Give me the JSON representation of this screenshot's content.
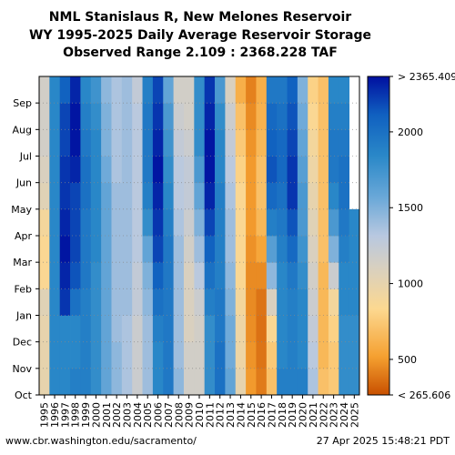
{
  "chart_data": {
    "type": "heatmap",
    "title": "NML Stanislaus R, New Melones Reservoir",
    "subtitle": "WY 1995-2025 Daily Average Reservoir Storage",
    "range_text": "Observed Range 2.109 : 2368.228 TAF",
    "x_years": [
      "1995",
      "1996",
      "1997",
      "1998",
      "1999",
      "2000",
      "2001",
      "2002",
      "2003",
      "2004",
      "2005",
      "2006",
      "2007",
      "2008",
      "2009",
      "2010",
      "2011",
      "2012",
      "2013",
      "2014",
      "2015",
      "2016",
      "2017",
      "2018",
      "2019",
      "2020",
      "2021",
      "2022",
      "2023",
      "2024",
      "2025"
    ],
    "y_months": [
      "Oct",
      "Nov",
      "Dec",
      "Jan",
      "Feb",
      "Mar",
      "Apr",
      "May",
      "Jun",
      "Jul",
      "Aug",
      "Sep"
    ],
    "colorbar_ticks": [
      {
        "label": "> 2365.409",
        "value": 2365.409
      },
      {
        "label": "2000",
        "value": 2000
      },
      {
        "label": "1500",
        "value": 1500
      },
      {
        "label": "1000",
        "value": 1000
      },
      {
        "label": "500",
        "value": 500
      },
      {
        "label": "< 265.606",
        "value": 265.606
      }
    ],
    "color_range": [
      265.606,
      2365.409
    ],
    "last_month_index": 6,
    "storage_taf_by_year": [
      [
        1000,
        1000,
        1000,
        1050,
        850,
        850,
        900,
        1050,
        1100,
        1150,
        1150,
        1150
      ],
      [
        1850,
        1850,
        1850,
        1850,
        1850,
        1850,
        1850,
        1850,
        1850,
        1850,
        1850,
        1850
      ],
      [
        1850,
        1850,
        1850,
        2250,
        2300,
        2350,
        2300,
        2250,
        2250,
        2200,
        2200,
        2100
      ],
      [
        1900,
        1850,
        1850,
        2000,
        2150,
        2200,
        2200,
        2200,
        2300,
        2350,
        2350,
        2300
      ],
      [
        1900,
        1900,
        1900,
        1900,
        1950,
        1950,
        1950,
        2000,
        2000,
        1950,
        1900,
        1850
      ],
      [
        1800,
        1800,
        1800,
        1800,
        1800,
        1850,
        1850,
        1850,
        1850,
        1850,
        1800,
        1750
      ],
      [
        1600,
        1600,
        1600,
        1600,
        1600,
        1600,
        1600,
        1600,
        1550,
        1500,
        1500,
        1450
      ],
      [
        1450,
        1450,
        1400,
        1400,
        1400,
        1400,
        1400,
        1400,
        1350,
        1350,
        1350,
        1350
      ],
      [
        1350,
        1350,
        1350,
        1400,
        1400,
        1400,
        1400,
        1400,
        1400,
        1400,
        1400,
        1400
      ],
      [
        1200,
        1200,
        1200,
        1250,
        1250,
        1300,
        1300,
        1300,
        1300,
        1300,
        1300,
        1250
      ],
      [
        1400,
        1400,
        1400,
        1450,
        1500,
        1600,
        1800,
        1900,
        1950,
        1950,
        1950,
        1900
      ],
      [
        1850,
        1850,
        1900,
        2000,
        2100,
        2200,
        2250,
        2300,
        2350,
        2300,
        2250,
        2200
      ],
      [
        1950,
        1950,
        1950,
        1950,
        1950,
        1950,
        1900,
        1850,
        1800,
        1750,
        1700,
        1600
      ],
      [
        1450,
        1400,
        1400,
        1400,
        1400,
        1400,
        1350,
        1300,
        1300,
        1250,
        1200,
        1150
      ],
      [
        1150,
        1150,
        1100,
        1100,
        1100,
        1150,
        1200,
        1250,
        1250,
        1200,
        1150,
        1150
      ],
      [
        1150,
        1150,
        1150,
        1200,
        1300,
        1400,
        1500,
        1600,
        1700,
        1800,
        1800,
        1800
      ],
      [
        1800,
        1800,
        1800,
        1900,
        2000,
        2100,
        2200,
        2300,
        2350,
        2350,
        2300,
        2250
      ],
      [
        2000,
        2000,
        1950,
        1950,
        1900,
        1900,
        1900,
        1900,
        1850,
        1850,
        1800,
        1700
      ],
      [
        1600,
        1550,
        1550,
        1500,
        1450,
        1400,
        1400,
        1350,
        1300,
        1250,
        1200,
        1100
      ],
      [
        1000,
        950,
        950,
        900,
        850,
        850,
        850,
        850,
        800,
        750,
        700,
        600
      ],
      [
        500,
        480,
        460,
        450,
        450,
        470,
        500,
        500,
        500,
        480,
        450,
        420
      ],
      [
        400,
        380,
        370,
        380,
        450,
        550,
        650,
        700,
        700,
        650,
        620,
        600
      ],
      [
        700,
        750,
        850,
        1100,
        1450,
        1650,
        1900,
        2050,
        2150,
        2100,
        2050,
        1950
      ],
      [
        1900,
        1850,
        1850,
        1850,
        1850,
        1900,
        1950,
        2000,
        2050,
        2050,
        2000,
        1950
      ],
      [
        1900,
        1900,
        1900,
        1900,
        1950,
        2050,
        2150,
        2250,
        2250,
        2200,
        2150,
        2100
      ],
      [
        1900,
        1850,
        1850,
        1850,
        1800,
        1750,
        1700,
        1700,
        1650,
        1600,
        1550,
        1500
      ],
      [
        1350,
        1300,
        1250,
        1200,
        1150,
        1100,
        1050,
        1000,
        950,
        900,
        850,
        800
      ],
      [
        700,
        650,
        650,
        650,
        650,
        700,
        700,
        700,
        700,
        700,
        700,
        700
      ],
      [
        750,
        750,
        800,
        900,
        1200,
        1500,
        1700,
        1850,
        1950,
        1950,
        1900,
        1850
      ],
      [
        1800,
        1800,
        1800,
        1850,
        1850,
        1900,
        1950,
        2000,
        2000,
        1950,
        1900,
        1850
      ],
      [
        1800,
        1800,
        1800,
        1850,
        1850,
        1850,
        1850
      ]
    ]
  },
  "footer": {
    "source": "www.cbr.washington.edu/sacramento/",
    "timestamp": "27 Apr 2025 15:48:21 PDT"
  }
}
